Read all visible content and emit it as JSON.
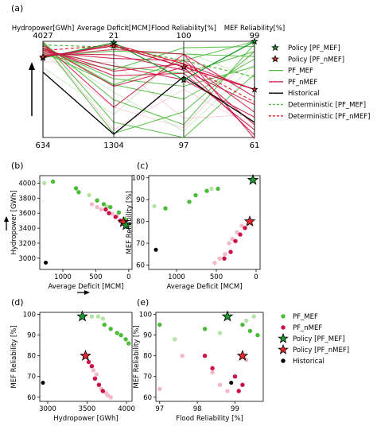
{
  "colors": {
    "pf_mef": "#4cbb3a",
    "pf_mef_light": "#b4e3a6",
    "pf_nmef": "#cc1144",
    "pf_nmef_light": "#f3b9c9",
    "historical": "#000000",
    "policy_mef": "#1f9a2e",
    "policy_nmef": "#e8262d"
  },
  "chart_data": [
    {
      "panel": "(a)",
      "type": "line",
      "axes": [
        {
          "label": "Hydropower[GWh]",
          "top": "4027",
          "bottom": "634",
          "range": [
            634,
            4027
          ]
        },
        {
          "label": "Average Deficit[MCM]",
          "top": "21",
          "bottom": "1304",
          "range": [
            1304,
            21
          ]
        },
        {
          "label": "Flood Reliability[%]",
          "top": "100",
          "bottom": "97",
          "range": [
            97,
            100
          ]
        },
        {
          "label": "MEF Reliability[%]",
          "top": "99",
          "bottom": "61",
          "range": [
            61,
            99
          ]
        }
      ],
      "legend": {
        "placement": "right",
        "entries": [
          "Policy [PF_MEF]",
          "Policy [PF_nMEF]",
          "PF_MEF",
          "PF_nMEF",
          "Historical",
          "Deterministic [PF_MEF]",
          "Deterministic [PF_nMEF]"
        ]
      },
      "series": [
        {
          "group": "historical",
          "values": [
            2940,
            1260,
            98.9,
            67
          ]
        },
        {
          "group": "policy_mef",
          "values": [
            3440,
            40,
            98.8,
            99
          ]
        },
        {
          "group": "policy_nmef",
          "values": [
            3480,
            80,
            99.2,
            80
          ]
        },
        {
          "group": "det_mef",
          "values": [
            3900,
            100,
            99.4,
            85
          ]
        },
        {
          "group": "det_nmef",
          "values": [
            3700,
            70,
            99.3,
            75
          ]
        },
        {
          "group": "pf_mef",
          "values": [
            4027,
            1100,
            97.0,
            86
          ]
        },
        {
          "group": "pf_mef",
          "values": [
            3990,
            800,
            97.4,
            98
          ]
        },
        {
          "group": "pf_mef",
          "values": [
            3940,
            1250,
            97.8,
            95
          ]
        },
        {
          "group": "pf_mef",
          "values": [
            3880,
            600,
            98.2,
            92
          ]
        },
        {
          "group": "pf_mef",
          "values": [
            3800,
            520,
            98.6,
            89
          ]
        },
        {
          "group": "pf_mef",
          "values": [
            3720,
            350,
            99.0,
            95
          ]
        },
        {
          "group": "pf_mef",
          "values": [
            3640,
            600,
            99.4,
            99
          ]
        },
        {
          "group": "pf_mef",
          "values": [
            3560,
            400,
            99.8,
            97
          ]
        },
        {
          "group": "pf_mef",
          "values": [
            3500,
            150,
            99.6,
            93
          ]
        },
        {
          "group": "pf_nmef",
          "values": [
            3960,
            900,
            99.6,
            60.5
          ]
        },
        {
          "group": "pf_nmef",
          "values": [
            3870,
            620,
            99.2,
            62
          ]
        },
        {
          "group": "pf_nmef",
          "values": [
            3800,
            480,
            99.0,
            64
          ]
        },
        {
          "group": "pf_nmef",
          "values": [
            3760,
            420,
            99.3,
            66
          ]
        },
        {
          "group": "pf_nmef",
          "values": [
            3700,
            350,
            98.8,
            69
          ]
        },
        {
          "group": "pf_nmef",
          "values": [
            3640,
            250,
            99.4,
            71
          ]
        },
        {
          "group": "pf_nmef",
          "values": [
            3580,
            200,
            99.1,
            74
          ]
        },
        {
          "group": "pf_nmef",
          "values": [
            3520,
            130,
            99.6,
            77
          ]
        },
        {
          "group": "pf_nmef",
          "values": [
            3460,
            60,
            99.3,
            80
          ]
        }
      ]
    },
    {
      "panel": "(b)",
      "type": "scatter",
      "xlabel": "Average Deficit [MCM]",
      "ylabel": "Hydropower [GWh]",
      "xlim": [
        1350,
        -50
      ],
      "ylim": [
        2850,
        4100
      ],
      "xticks": [
        1000,
        500,
        0
      ],
      "yticks": [
        3000,
        3200,
        3400,
        3600,
        3800,
        4000
      ],
      "series": [
        {
          "group": "pf_mef",
          "points": [
            [
              1150,
              4020
            ],
            [
              800,
              3930
            ],
            [
              760,
              3880
            ],
            [
              480,
              3770
            ],
            [
              380,
              3720
            ],
            [
              280,
              3680
            ],
            [
              150,
              3610
            ],
            [
              60,
              3520
            ]
          ]
        },
        {
          "group": "pf_mef_light",
          "points": [
            [
              1280,
              4000
            ],
            [
              600,
              3840
            ],
            [
              330,
              3690
            ]
          ]
        },
        {
          "group": "pf_nmef",
          "points": [
            [
              350,
              3650
            ],
            [
              300,
              3600
            ],
            [
              200,
              3550
            ],
            [
              130,
              3500
            ],
            [
              70,
              3470
            ]
          ]
        },
        {
          "group": "pf_nmef_light",
          "points": [
            [
              560,
              3720
            ],
            [
              480,
              3680
            ],
            [
              420,
              3650
            ],
            [
              250,
              3590
            ],
            [
              180,
              3560
            ],
            [
              100,
              3480
            ]
          ]
        },
        {
          "group": "historical",
          "points": [
            [
              1260,
              2940
            ]
          ]
        },
        {
          "group": "policy_mef",
          "points": [
            [
              40,
              3440
            ]
          ]
        },
        {
          "group": "policy_nmef",
          "points": [
            [
              80,
              3480
            ]
          ]
        }
      ]
    },
    {
      "panel": "(c)",
      "type": "scatter",
      "xlabel": "Average Deficit [MCM]",
      "ylabel": "MEF Reliability [%]",
      "xlim": [
        1350,
        -50
      ],
      "ylim": [
        58,
        101
      ],
      "xticks": [
        1000,
        500,
        0
      ],
      "yticks": [
        60,
        70,
        80,
        90,
        100
      ],
      "series": [
        {
          "group": "pf_mef",
          "points": [
            [
              1140,
              86
            ],
            [
              840,
              89
            ],
            [
              760,
              92
            ],
            [
              620,
              94
            ],
            [
              480,
              95
            ]
          ]
        },
        {
          "group": "pf_mef_light",
          "points": [
            [
              1280,
              87
            ],
            [
              560,
              95
            ]
          ]
        },
        {
          "group": "pf_nmef",
          "points": [
            [
              400,
              63
            ],
            [
              320,
              66
            ],
            [
              260,
              71
            ],
            [
              200,
              74
            ],
            [
              140,
              77
            ]
          ]
        },
        {
          "group": "pf_nmef_light",
          "points": [
            [
              520,
              61
            ],
            [
              460,
              63
            ],
            [
              390,
              65
            ],
            [
              340,
              70
            ],
            [
              300,
              72
            ],
            [
              240,
              75
            ],
            [
              180,
              78
            ],
            [
              100,
              79
            ]
          ]
        },
        {
          "group": "historical",
          "points": [
            [
              1260,
              67
            ]
          ]
        },
        {
          "group": "policy_mef",
          "points": [
            [
              40,
              99
            ]
          ]
        },
        {
          "group": "policy_nmef",
          "points": [
            [
              80,
              80
            ]
          ]
        }
      ]
    },
    {
      "panel": "(d)",
      "type": "scatter",
      "xlabel": "Hydropower [GWh]",
      "ylabel": "MEF Reliability [%]",
      "xlim": [
        2900,
        4070
      ],
      "ylim": [
        58,
        101
      ],
      "xticks": [
        3000,
        3500,
        4000
      ],
      "yticks": [
        60,
        70,
        80,
        90,
        100
      ],
      "series": [
        {
          "group": "pf_mef",
          "points": [
            [
              3720,
              95
            ],
            [
              3800,
              93
            ],
            [
              3880,
              91
            ],
            [
              3930,
              90
            ],
            [
              3990,
              88
            ],
            [
              4027,
              86
            ]
          ]
        },
        {
          "group": "pf_mef_light",
          "points": [
            [
              3560,
              99
            ],
            [
              3640,
              99
            ],
            [
              3700,
              98
            ]
          ]
        },
        {
          "group": "pf_nmef",
          "points": [
            [
              3520,
              77
            ],
            [
              3560,
              75
            ],
            [
              3600,
              69
            ],
            [
              3650,
              66
            ],
            [
              3700,
              63
            ]
          ]
        },
        {
          "group": "pf_nmef_light",
          "points": [
            [
              3580,
              73
            ],
            [
              3620,
              71
            ],
            [
              3680,
              64
            ],
            [
              3740,
              62
            ],
            [
              3760,
              61
            ],
            [
              3800,
              60
            ]
          ]
        },
        {
          "group": "historical",
          "points": [
            [
              2940,
              67
            ]
          ]
        },
        {
          "group": "policy_mef",
          "points": [
            [
              3440,
              99
            ]
          ]
        },
        {
          "group": "policy_nmef",
          "points": [
            [
              3480,
              80
            ]
          ]
        }
      ]
    },
    {
      "panel": "(e)",
      "type": "scatter",
      "xlabel": "Flood Reliability [%]",
      "ylabel": "MEF Reliability [%]",
      "xlim": [
        96.9,
        99.75
      ],
      "ylim": [
        58,
        101
      ],
      "xticks": [
        97,
        98,
        99
      ],
      "yticks": [
        60,
        70,
        80,
        90,
        100
      ],
      "series": [
        {
          "group": "pf_mef",
          "points": [
            [
              97.0,
              95
            ],
            [
              98.2,
              93
            ],
            [
              99.2,
              95
            ],
            [
              99.4,
              92
            ],
            [
              99.6,
              90
            ]
          ]
        },
        {
          "group": "pf_mef_light",
          "points": [
            [
              97.4,
              88
            ],
            [
              98.6,
              91
            ],
            [
              99.5,
              99
            ],
            [
              99.3,
              97
            ]
          ]
        },
        {
          "group": "pf_nmef",
          "points": [
            [
              98.2,
              80
            ],
            [
              98.4,
              74
            ],
            [
              99.0,
              70
            ],
            [
              99.1,
              63
            ],
            [
              99.2,
              66
            ]
          ]
        },
        {
          "group": "pf_nmef_light",
          "points": [
            [
              97.0,
              64
            ],
            [
              97.6,
              80
            ],
            [
              98.4,
              72
            ],
            [
              98.6,
              66
            ],
            [
              98.8,
              63
            ],
            [
              99.3,
              78
            ]
          ]
        },
        {
          "group": "historical",
          "points": [
            [
              98.9,
              67
            ]
          ]
        },
        {
          "group": "policy_mef",
          "points": [
            [
              98.8,
              99
            ]
          ]
        },
        {
          "group": "policy_nmef",
          "points": [
            [
              99.2,
              80
            ]
          ]
        }
      ]
    }
  ],
  "scatter_legend": {
    "placement": "right",
    "entries": [
      {
        "label": "PF_MEF",
        "group": "pf_mef"
      },
      {
        "label": "PF_nMEF",
        "group": "pf_nmef"
      },
      {
        "label": "Policy [PF_MEF]",
        "group": "policy_mef"
      },
      {
        "label": "Policy [PF_nMEF]",
        "group": "policy_nmef"
      },
      {
        "label": "Historical",
        "group": "historical"
      }
    ]
  }
}
